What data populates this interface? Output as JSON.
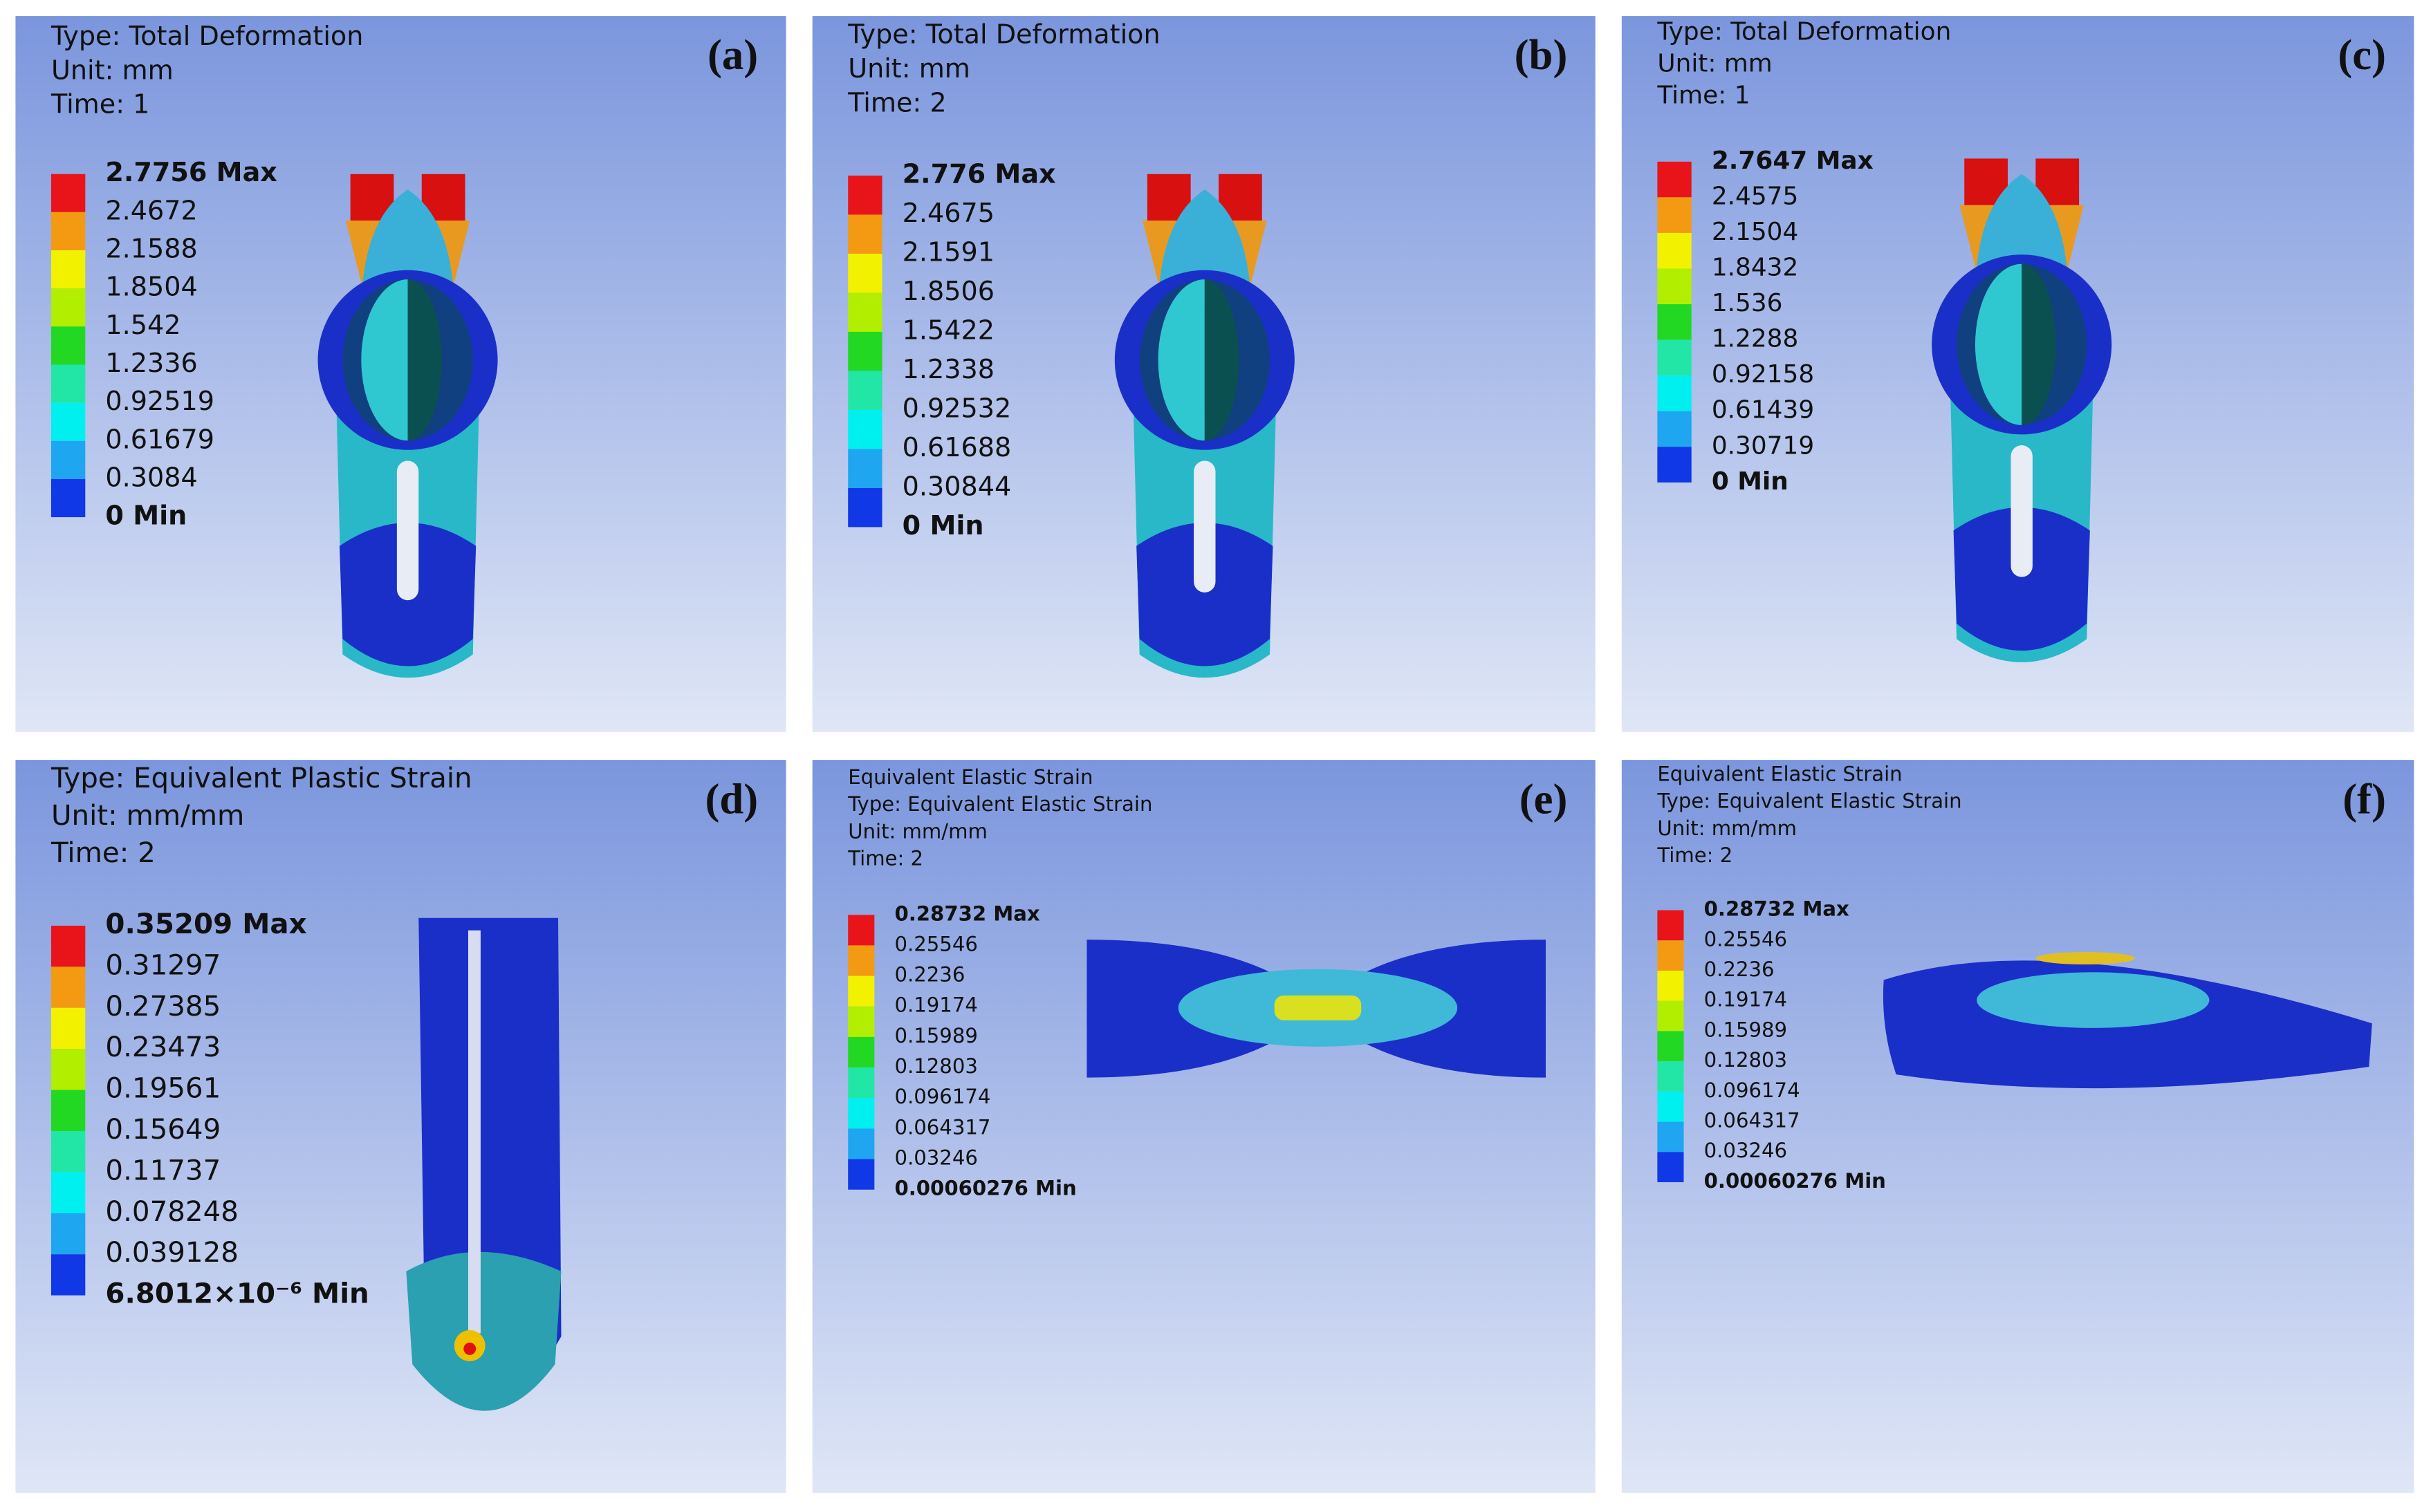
{
  "panels": [
    {
      "label": "(a)",
      "header": [
        "Type: Total Deformation",
        "Unit: mm",
        "Time: 1"
      ],
      "legend": [
        "2.7756 Max",
        "2.4672",
        "2.1588",
        "1.8504",
        "1.542",
        "1.2336",
        "0.92519",
        "0.61679",
        "0.3084",
        "0 Min"
      ]
    },
    {
      "label": "(b)",
      "header": [
        "Type: Total Deformation",
        "Unit: mm",
        "Time: 2"
      ],
      "legend": [
        "2.776 Max",
        "2.4675",
        "2.1591",
        "1.8506",
        "1.5422",
        "1.2338",
        "0.92532",
        "0.61688",
        "0.30844",
        "0 Min"
      ]
    },
    {
      "label": "(c)",
      "header": [
        "Type: Total Deformation",
        "Unit: mm",
        "Time: 1"
      ],
      "legend": [
        "2.7647 Max",
        "2.4575",
        "2.1504",
        "1.8432",
        "1.536",
        "1.2288",
        "0.92158",
        "0.61439",
        "0.30719",
        "0 Min"
      ]
    },
    {
      "label": "(d)",
      "header": [
        "Type: Equivalent Plastic Strain",
        "Unit: mm/mm",
        "Time: 2"
      ],
      "legend": [
        "0.35209 Max",
        "0.31297",
        "0.27385",
        "0.23473",
        "0.19561",
        "0.15649",
        "0.11737",
        "0.078248",
        "0.039128",
        "6.8012×10⁻⁶ Min"
      ]
    },
    {
      "label": "(e)",
      "header": [
        "Equivalent Elastic Strain",
        "Type: Equivalent Elastic Strain",
        "Unit: mm/mm",
        "Time: 2"
      ],
      "legend": [
        "0.28732 Max",
        "0.25546",
        "0.2236",
        "0.19174",
        "0.15989",
        "0.12803",
        "0.096174",
        "0.064317",
        "0.03246",
        "0.00060276 Min"
      ]
    },
    {
      "label": "(f)",
      "header": [
        "Equivalent Elastic Strain",
        "Type: Equivalent Elastic Strain",
        "Unit: mm/mm",
        "Time: 2"
      ],
      "legend": [
        "0.28732 Max",
        "0.25546",
        "0.2236",
        "0.19174",
        "0.15989",
        "0.12803",
        "0.096174",
        "0.064317",
        "0.03246",
        "0.00060276 Min"
      ]
    }
  ]
}
